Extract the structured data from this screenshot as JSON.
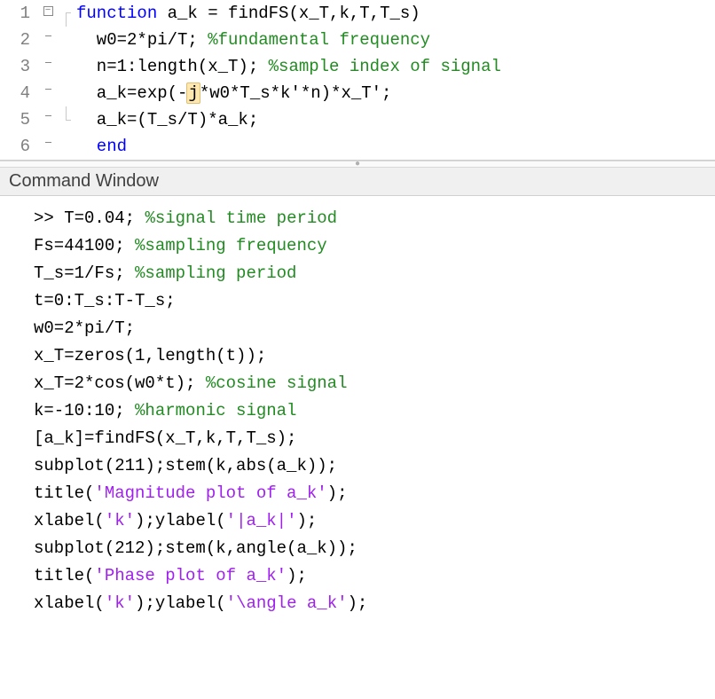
{
  "editor": {
    "lines": [
      {
        "num": "1",
        "fold": "box",
        "bracket": "top",
        "segments": [
          {
            "cls": "kw",
            "t": "function "
          },
          {
            "cls": "txt",
            "t": "a_k = findFS(x_T,k,T,T_s)"
          }
        ]
      },
      {
        "num": "2",
        "fold": "dash",
        "bracket": "mid",
        "segments": [
          {
            "cls": "txt",
            "t": "  w0=2*pi/T; "
          },
          {
            "cls": "com",
            "t": "%fundamental frequency"
          }
        ]
      },
      {
        "num": "3",
        "fold": "dash",
        "bracket": "mid",
        "segments": [
          {
            "cls": "txt",
            "t": "  n=1:length(x_T); "
          },
          {
            "cls": "com",
            "t": "%sample index of signal"
          }
        ]
      },
      {
        "num": "4",
        "fold": "dash",
        "bracket": "mid",
        "segments": [
          {
            "cls": "txt",
            "t": "  a_k=exp(-"
          },
          {
            "cls": "txt hl",
            "t": "j"
          },
          {
            "cls": "txt",
            "t": "*w0*T_s*k'*n)*x_T';"
          }
        ]
      },
      {
        "num": "5",
        "fold": "dash",
        "bracket": "mid",
        "segments": [
          {
            "cls": "txt",
            "t": "  a_k=(T_s/T)*a_k;"
          }
        ]
      },
      {
        "num": "6",
        "fold": "dash",
        "bracket": "bot",
        "segments": [
          {
            "cls": "kw",
            "t": "  end"
          }
        ]
      }
    ]
  },
  "command_window": {
    "title": "Command Window",
    "prompt": ">> ",
    "lines": [
      [
        {
          "cls": "txt",
          "t": "T=0.04; "
        },
        {
          "cls": "com",
          "t": "%signal time period"
        }
      ],
      [
        {
          "cls": "txt",
          "t": "Fs=44100; "
        },
        {
          "cls": "com",
          "t": "%sampling frequency"
        }
      ],
      [
        {
          "cls": "txt",
          "t": "T_s=1/Fs; "
        },
        {
          "cls": "com",
          "t": "%sampling period"
        }
      ],
      [
        {
          "cls": "txt",
          "t": "t=0:T_s:T-T_s;"
        }
      ],
      [
        {
          "cls": "txt",
          "t": "w0=2*pi/T;"
        }
      ],
      [
        {
          "cls": "txt",
          "t": "x_T=zeros(1,length(t));"
        }
      ],
      [
        {
          "cls": "txt",
          "t": "x_T=2*cos(w0*t); "
        },
        {
          "cls": "com",
          "t": "%cosine signal"
        }
      ],
      [
        {
          "cls": "txt",
          "t": "k=-10:10; "
        },
        {
          "cls": "com",
          "t": "%harmonic signal"
        }
      ],
      [
        {
          "cls": "txt",
          "t": "[a_k]=findFS(x_T,k,T,T_s);"
        }
      ],
      [
        {
          "cls": "txt",
          "t": "subplot(211);stem(k,abs(a_k));"
        }
      ],
      [
        {
          "cls": "txt",
          "t": "title("
        },
        {
          "cls": "str",
          "t": "'Magnitude plot of a_k'"
        },
        {
          "cls": "txt",
          "t": ");"
        }
      ],
      [
        {
          "cls": "txt",
          "t": "xlabel("
        },
        {
          "cls": "str",
          "t": "'k'"
        },
        {
          "cls": "txt",
          "t": ");ylabel("
        },
        {
          "cls": "str",
          "t": "'|a_k|'"
        },
        {
          "cls": "txt",
          "t": ");"
        }
      ],
      [
        {
          "cls": "txt",
          "t": "subplot(212);stem(k,angle(a_k));"
        }
      ],
      [
        {
          "cls": "txt",
          "t": "title("
        },
        {
          "cls": "str",
          "t": "'Phase plot of a_k'"
        },
        {
          "cls": "txt",
          "t": ");"
        }
      ],
      [
        {
          "cls": "txt",
          "t": "xlabel("
        },
        {
          "cls": "str",
          "t": "'k'"
        },
        {
          "cls": "txt",
          "t": ");ylabel("
        },
        {
          "cls": "str",
          "t": "'\\angle a_k'"
        },
        {
          "cls": "txt",
          "t": ");"
        }
      ]
    ]
  }
}
